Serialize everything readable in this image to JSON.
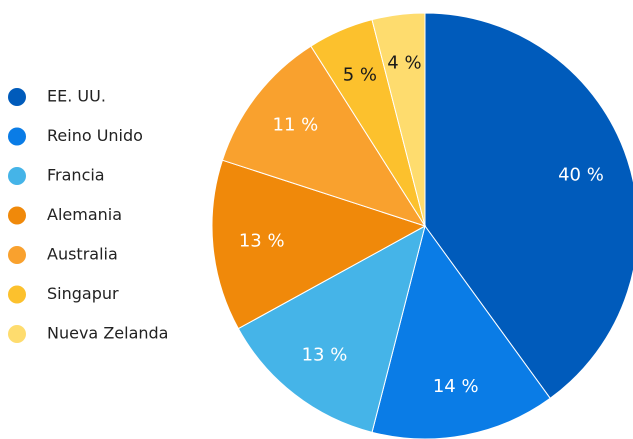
{
  "chart_data": {
    "type": "pie",
    "categories": [
      "EE. UU.",
      "Reino Unido",
      "Francia",
      "Alemania",
      "Australia",
      "Singapur",
      "Nueva Zelanda"
    ],
    "values": [
      40,
      14,
      13,
      13,
      11,
      5,
      4
    ],
    "value_labels": [
      "40 %",
      "14 %",
      "13 %",
      "13 %",
      "11 %",
      "5 %",
      "4 %"
    ],
    "colors": [
      "#005bbb",
      "#0a7ce6",
      "#45b4e8",
      "#f0890a",
      "#f9a12e",
      "#fcc12d",
      "#fedc6e"
    ],
    "legend": "left"
  }
}
